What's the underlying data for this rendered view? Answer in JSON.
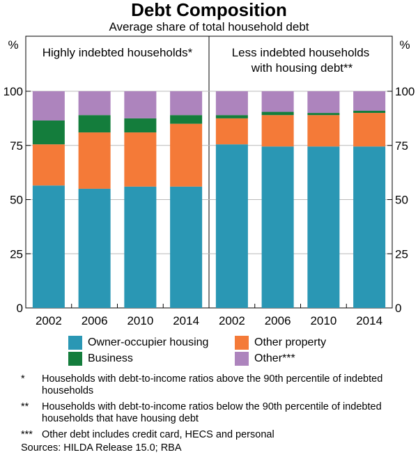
{
  "title": "Debt Composition",
  "subtitle": "Average share of total household debt",
  "chart_data": {
    "type": "bar",
    "stacked": true,
    "title": "Debt Composition",
    "subtitle": "Average share of total household debt",
    "ylabel": "%",
    "ylim": [
      0,
      100
    ],
    "yticks": [
      0,
      25,
      50,
      75,
      100
    ],
    "categories": [
      "2002",
      "2006",
      "2010",
      "2014"
    ],
    "colors": {
      "owner": "#2a97b4",
      "property": "#f47a38",
      "business": "#147d3c",
      "other": "#ad84bd"
    },
    "panels": [
      {
        "title": "Highly indebted households*",
        "series": [
          {
            "key": "owner",
            "name": "Owner-occupier housing",
            "values": [
              56.5,
              55,
              56,
              56
            ]
          },
          {
            "key": "property",
            "name": "Other property",
            "values": [
              19,
              26,
              25,
              29
            ]
          },
          {
            "key": "business",
            "name": "Business",
            "values": [
              11,
              8,
              6.5,
              4
            ]
          },
          {
            "key": "other",
            "name": "Other***",
            "values": [
              13.5,
              11,
              12.5,
              11
            ]
          }
        ]
      },
      {
        "title": "Less indebted households with housing debt**",
        "title_lines": [
          "Less indebted households",
          "with housing debt**"
        ],
        "series": [
          {
            "key": "owner",
            "name": "Owner-occupier housing",
            "values": [
              75.5,
              74.5,
              74.5,
              74.5
            ]
          },
          {
            "key": "property",
            "name": "Other property",
            "values": [
              12,
              14.5,
              14.5,
              15.5
            ]
          },
          {
            "key": "business",
            "name": "Business",
            "values": [
              1.5,
              1.5,
              1,
              1
            ]
          },
          {
            "key": "other",
            "name": "Other***",
            "values": [
              11,
              9.5,
              10,
              9
            ]
          }
        ]
      }
    ]
  },
  "legend": {
    "owner": "Owner-occupier housing",
    "property": "Other property",
    "business": "Business",
    "other": "Other***"
  },
  "notes": [
    {
      "mark": "*",
      "text": "Households with debt-to-income ratios above the 90th percentile of indebted households"
    },
    {
      "mark": "**",
      "text": "Households with debt-to-income ratios below the 90th percentile of indebted households that have housing debt"
    },
    {
      "mark": "***",
      "text": "Other debt includes credit card, HECS and personal"
    }
  ],
  "sources": "Sources:  HILDA Release 15.0; RBA"
}
